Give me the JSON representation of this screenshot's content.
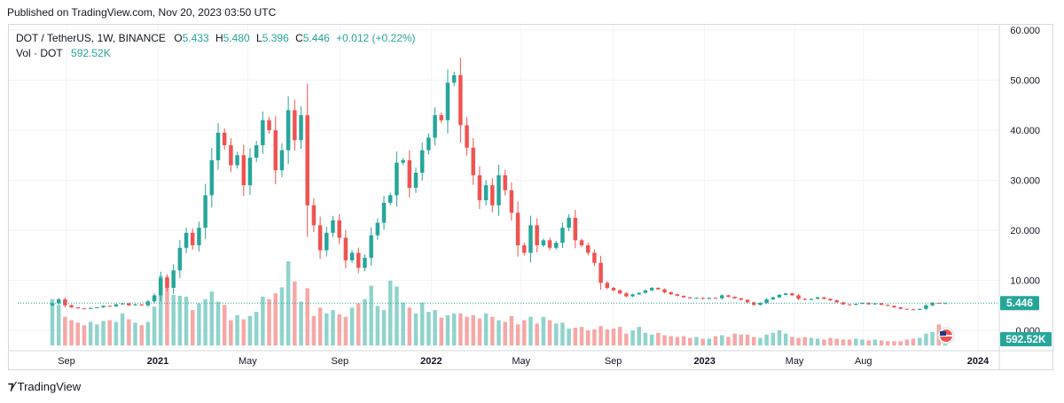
{
  "header": {
    "published": "Published on TradingView.com, Nov 20, 2023 03:50 UTC"
  },
  "legend": {
    "symbol": "DOT / TetherUS, 1W, BINANCE",
    "open_label": "O",
    "open": "5.433",
    "high_label": "H",
    "high": "5.480",
    "low_label": "L",
    "low": "5.396",
    "close_label": "C",
    "close": "5.446",
    "change": "+0.012 (+0.22%)",
    "vol_label": "Vol · DOT",
    "vol_value": "592.52K"
  },
  "price_tag": "5.446",
  "volume_tag": "592.52K",
  "footer": {
    "brand": "TradingView"
  },
  "colors": {
    "up": "#26a69a",
    "down": "#ef5350",
    "up_vol": "#8fd3cc",
    "down_vol": "#f5a8a6",
    "grid": "#f0f3fa",
    "axis_text": "#131722"
  },
  "chart_data": {
    "type": "candlestick",
    "title": "DOT / TetherUS, 1W, BINANCE",
    "ylim": [
      0,
      60
    ],
    "yticks": [
      "60.000",
      "50.000",
      "40.000",
      "30.000",
      "20.000",
      "10.000",
      "0.000"
    ],
    "ytick_values": [
      60,
      50,
      40,
      30,
      20,
      10,
      0
    ],
    "xtick_labels": [
      "Sep",
      "2021",
      "May",
      "Sep",
      "2022",
      "May",
      "Sep",
      "2023",
      "May",
      "Aug",
      "2024"
    ],
    "xtick_dates": [
      "2020-09-01",
      "2021-01-01",
      "2021-05-01",
      "2021-09-01",
      "2022-01-01",
      "2022-05-01",
      "2022-09-01",
      "2023-01-01",
      "2023-05-01",
      "2023-08-01",
      "2024-01-01"
    ],
    "bold_xticks": [
      "2021",
      "2022",
      "2023",
      "2024"
    ],
    "weekly_close": [
      5.4,
      6.2,
      5.0,
      4.6,
      4.4,
      4.3,
      4.5,
      4.6,
      4.9,
      4.8,
      5.2,
      5.4,
      5.0,
      5.2,
      5.0,
      5.8,
      7.0,
      10.5,
      8.5,
      12.0,
      16.5,
      19.5,
      17.0,
      20.5,
      27.0,
      34.0,
      39.5,
      37.0,
      33.0,
      35.0,
      29.0,
      34.5,
      37.0,
      42.0,
      40.0,
      32.0,
      36.0,
      44.0,
      38.0,
      43.0,
      25.0,
      21.0,
      16.0,
      19.5,
      22.0,
      18.5,
      14.0,
      15.5,
      12.5,
      14.5,
      19.0,
      21.5,
      25.5,
      27.0,
      33.5,
      34.0,
      28.5,
      31.5,
      36.0,
      38.5,
      43.0,
      42.0,
      49.5,
      51.0,
      41.0,
      36.5,
      31.0,
      26.0,
      29.0,
      25.0,
      31.0,
      28.0,
      23.5,
      17.0,
      15.5,
      21.0,
      17.0,
      18.0,
      16.5,
      17.5,
      20.5,
      22.5,
      18.0,
      17.0,
      15.5,
      13.5,
      9.5,
      8.5,
      8.0,
      7.4,
      6.8,
      7.2,
      7.5,
      8.0,
      8.5,
      8.2,
      7.6,
      7.2,
      6.9,
      6.6,
      6.4,
      6.5,
      6.3,
      6.5,
      6.4,
      7.0,
      6.7,
      6.4,
      6.1,
      5.6,
      5.1,
      5.5,
      6.2,
      6.6,
      7.1,
      7.4,
      7.0,
      6.3,
      6.1,
      6.3,
      6.6,
      6.3,
      6.0,
      5.6,
      5.2,
      5.1,
      5.3,
      5.5,
      5.2,
      5.4,
      5.1,
      4.9,
      4.6,
      4.3,
      4.2,
      4.1,
      4.3,
      5.0,
      5.5,
      5.433,
      5.446
    ],
    "weekly_volume_rel": [
      0.55,
      0.48,
      0.34,
      0.3,
      0.27,
      0.24,
      0.28,
      0.25,
      0.29,
      0.3,
      0.28,
      0.38,
      0.31,
      0.27,
      0.24,
      0.28,
      0.46,
      0.83,
      0.82,
      0.6,
      0.59,
      0.58,
      0.42,
      0.5,
      0.55,
      0.64,
      0.52,
      0.48,
      0.3,
      0.36,
      0.31,
      0.35,
      0.4,
      0.58,
      0.55,
      0.62,
      0.69,
      1.0,
      0.76,
      0.52,
      0.68,
      0.35,
      0.45,
      0.38,
      0.42,
      0.37,
      0.34,
      0.45,
      0.5,
      0.55,
      0.71,
      0.47,
      0.42,
      0.77,
      0.7,
      0.51,
      0.45,
      0.38,
      0.51,
      0.4,
      0.42,
      0.33,
      0.36,
      0.38,
      0.38,
      0.34,
      0.36,
      0.32,
      0.38,
      0.34,
      0.3,
      0.28,
      0.35,
      0.25,
      0.3,
      0.34,
      0.26,
      0.34,
      0.3,
      0.26,
      0.27,
      0.2,
      0.21,
      0.22,
      0.18,
      0.19,
      0.23,
      0.19,
      0.2,
      0.22,
      0.14,
      0.18,
      0.22,
      0.15,
      0.13,
      0.15,
      0.12,
      0.11,
      0.1,
      0.11,
      0.09,
      0.1,
      0.08,
      0.08,
      0.11,
      0.12,
      0.1,
      0.14,
      0.13,
      0.13,
      0.1,
      0.09,
      0.13,
      0.15,
      0.18,
      0.14,
      0.1,
      0.09,
      0.1,
      0.09,
      0.08,
      0.07,
      0.09,
      0.08,
      0.07,
      0.07,
      0.08,
      0.07,
      0.06,
      0.07,
      0.06,
      0.05,
      0.05,
      0.05,
      0.07,
      0.08,
      0.09,
      0.14,
      0.16,
      0.25,
      0.15
    ],
    "last_price": 5.446,
    "last_volume": "592.52K",
    "grid": true
  }
}
